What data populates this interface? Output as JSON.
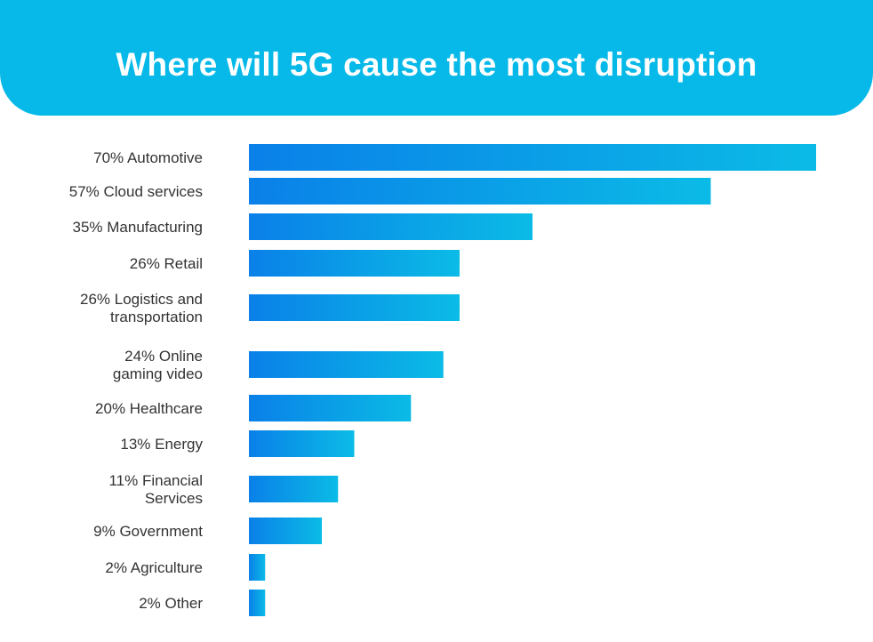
{
  "title": "Where will 5G cause the most disruption",
  "colors": {
    "header_bg": "#06b9e8",
    "bar_gradient_start": "#0a80e8",
    "bar_gradient_end": "#0bbbe6",
    "label_text": "#333333"
  },
  "chart_data": {
    "type": "bar",
    "orientation": "horizontal",
    "unit": "%",
    "xlim": [
      0,
      70
    ],
    "grid": false,
    "categories": [
      "Automotive",
      "Cloud services",
      "Manufacturing",
      "Retail",
      "Logistics and transportation",
      "Online gaming video",
      "Healthcare",
      "Energy",
      "Financial Services",
      "Government",
      "Agriculture",
      "Other"
    ],
    "values": [
      70,
      57,
      35,
      26,
      26,
      24,
      20,
      13,
      11,
      9,
      2,
      2
    ],
    "labels": [
      [
        "70% Automotive"
      ],
      [
        "57% Cloud services"
      ],
      [
        "35% Manufacturing"
      ],
      [
        "26% Retail"
      ],
      [
        "26% Logistics and",
        "transportation"
      ],
      [
        "24% Online",
        "gaming video"
      ],
      [
        "20% Healthcare"
      ],
      [
        "13% Energy"
      ],
      [
        "11% Financial",
        "Services"
      ],
      [
        "9% Government"
      ],
      [
        "2% Agriculture"
      ],
      [
        "2% Other"
      ]
    ]
  }
}
